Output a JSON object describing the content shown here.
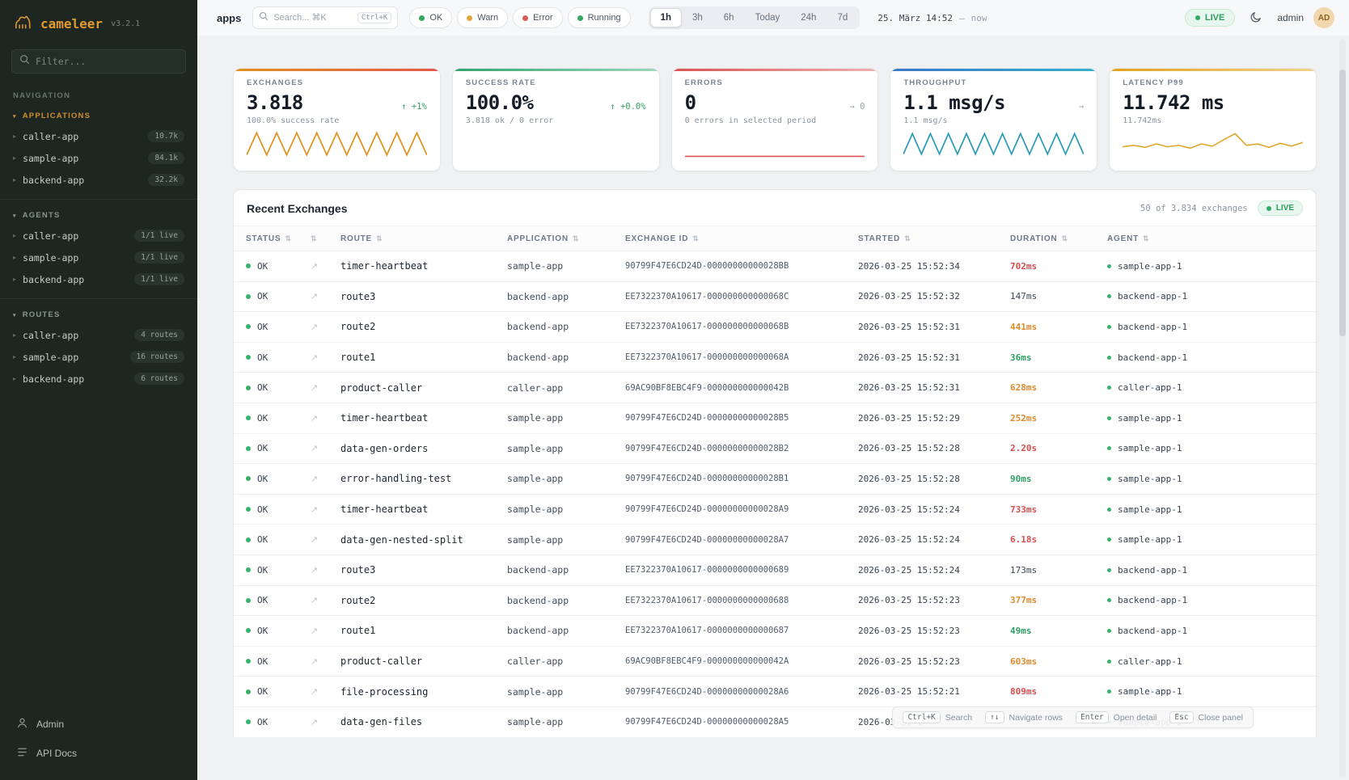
{
  "app": {
    "name": "cameleer",
    "version": "v3.2.1"
  },
  "icons": {
    "sort": "⇅",
    "chevron_right": "▸",
    "chevron_down": "▾",
    "open": "↗"
  },
  "sidebar": {
    "filter_placeholder": "Filter...",
    "nav_label": "NAVIGATION",
    "sections": [
      {
        "title": "APPLICATIONS",
        "tone": "amber",
        "items": [
          {
            "label": "caller-app",
            "badge": "10.7k"
          },
          {
            "label": "sample-app",
            "badge": "84.1k"
          },
          {
            "label": "backend-app",
            "badge": "32.2k"
          }
        ]
      },
      {
        "title": "AGENTS",
        "tone": "muted",
        "items": [
          {
            "label": "caller-app",
            "badge": "1/1 live"
          },
          {
            "label": "sample-app",
            "badge": "1/1 live"
          },
          {
            "label": "backend-app",
            "badge": "1/1 live"
          }
        ]
      },
      {
        "title": "ROUTES",
        "tone": "muted",
        "items": [
          {
            "label": "caller-app",
            "badge": "4 routes"
          },
          {
            "label": "sample-app",
            "badge": "16 routes"
          },
          {
            "label": "backend-app",
            "badge": "6 routes"
          }
        ]
      }
    ],
    "footer": [
      {
        "label": "Admin"
      },
      {
        "label": "API Docs"
      }
    ]
  },
  "header": {
    "page": "apps",
    "search_placeholder": "Search... ⌘K",
    "search_kbd": "Ctrl+K",
    "chips": [
      {
        "label": "OK",
        "color": "#34a864"
      },
      {
        "label": "Warn",
        "color": "#dfa73d"
      },
      {
        "label": "Error",
        "color": "#d95c5c"
      },
      {
        "label": "Running",
        "color": "#34a864"
      }
    ],
    "ranges": [
      {
        "label": "1h",
        "active": true
      },
      {
        "label": "3h",
        "active": false
      },
      {
        "label": "6h",
        "active": false
      },
      {
        "label": "Today",
        "active": false
      },
      {
        "label": "24h",
        "active": false
      },
      {
        "label": "7d",
        "active": false
      }
    ],
    "date": "25. März 14:52",
    "date_sep": "—",
    "date_end": "now",
    "live": "LIVE",
    "user": "admin",
    "avatar": "AD"
  },
  "cards": [
    {
      "label": "EXCHANGES",
      "value": "3.818",
      "trend_arrow": "↑",
      "trend": "+1%",
      "trend_tone": "green",
      "sub": "100.0% success rate",
      "accent": "#e2921e",
      "accent2": "#e4584b",
      "spark_color": "#e0921d",
      "spark": [
        0.88,
        0.12,
        0.88,
        0.12,
        0.88,
        0.12,
        0.88,
        0.12,
        0.88,
        0.12,
        0.88,
        0.12,
        0.88,
        0.12,
        0.88,
        0.12,
        0.88,
        0.12,
        0.88
      ]
    },
    {
      "label": "SUCCESS RATE",
      "value": "100.0%",
      "trend_arrow": "↑",
      "trend": "+0.0%",
      "trend_tone": "green",
      "sub": "3.818 ok / 0 error",
      "accent": "#2fa56c",
      "accent2": "#9ed8bb",
      "spark_color": "#2fa56c",
      "spark": []
    },
    {
      "label": "ERRORS",
      "value": "0",
      "trend_arrow": "→",
      "trend": "0",
      "trend_tone": "gray",
      "sub": "0 errors in selected period",
      "accent": "#d95252",
      "accent2": "#f0b1b1",
      "spark_color": "#d95252",
      "spark": [
        0.93,
        0.93
      ]
    },
    {
      "label": "THROUGHPUT",
      "value": "1.1 msg/s",
      "trend_arrow": "→",
      "trend": "",
      "trend_tone": "gray",
      "sub": "1.1 msg/s",
      "accent": "#3a78c9",
      "accent2": "#35b0c9",
      "spark_color": "#2b9ab8",
      "spark": [
        0.85,
        0.15,
        0.85,
        0.15,
        0.85,
        0.15,
        0.85,
        0.15,
        0.85,
        0.15,
        0.85,
        0.15,
        0.85,
        0.15,
        0.85,
        0.15,
        0.85,
        0.15,
        0.85,
        0.15,
        0.85
      ]
    },
    {
      "label": "LATENCY P99",
      "value": "11.742 ms",
      "trend_arrow": "",
      "trend": "",
      "trend_tone": "gray",
      "sub": "11.742ms",
      "accent": "#e2a31e",
      "accent2": "#efd28a",
      "spark_color": "#e0a52a",
      "spark": [
        0.6,
        0.55,
        0.62,
        0.5,
        0.6,
        0.55,
        0.65,
        0.5,
        0.58,
        0.35,
        0.15,
        0.55,
        0.5,
        0.62,
        0.48,
        0.58,
        0.45
      ]
    }
  ],
  "exchanges": {
    "title": "Recent Exchanges",
    "count": "50 of 3.834 exchanges",
    "live": "LIVE",
    "columns": [
      "STATUS",
      "",
      "ROUTE",
      "APPLICATION",
      "EXCHANGE ID",
      "STARTED",
      "DURATION",
      "AGENT"
    ],
    "rows": [
      {
        "status": "OK",
        "route": "timer-heartbeat",
        "application": "sample-app",
        "exchange_id": "90799F47E6CD24D-00000000000028BB",
        "started": "2026-03-25 15:52:34",
        "duration": "702ms",
        "tone": "red",
        "agent": "sample-app-1"
      },
      {
        "status": "OK",
        "route": "route3",
        "application": "backend-app",
        "exchange_id": "EE7322370A10617-000000000000068C",
        "started": "2026-03-25 15:52:32",
        "duration": "147ms",
        "tone": "default",
        "agent": "backend-app-1"
      },
      {
        "status": "OK",
        "route": "route2",
        "application": "backend-app",
        "exchange_id": "EE7322370A10617-000000000000068B",
        "started": "2026-03-25 15:52:31",
        "duration": "441ms",
        "tone": "orange",
        "agent": "backend-app-1"
      },
      {
        "status": "OK",
        "route": "route1",
        "application": "backend-app",
        "exchange_id": "EE7322370A10617-000000000000068A",
        "started": "2026-03-25 15:52:31",
        "duration": "36ms",
        "tone": "green",
        "agent": "backend-app-1"
      },
      {
        "status": "OK",
        "route": "product-caller",
        "application": "caller-app",
        "exchange_id": "69AC90BF8EBC4F9-000000000000042B",
        "started": "2026-03-25 15:52:31",
        "duration": "628ms",
        "tone": "orange",
        "agent": "caller-app-1"
      },
      {
        "status": "OK",
        "route": "timer-heartbeat",
        "application": "sample-app",
        "exchange_id": "90799F47E6CD24D-00000000000028B5",
        "started": "2026-03-25 15:52:29",
        "duration": "252ms",
        "tone": "orange",
        "agent": "sample-app-1"
      },
      {
        "status": "OK",
        "route": "data-gen-orders",
        "application": "sample-app",
        "exchange_id": "90799F47E6CD24D-00000000000028B2",
        "started": "2026-03-25 15:52:28",
        "duration": "2.20s",
        "tone": "red",
        "agent": "sample-app-1"
      },
      {
        "status": "OK",
        "route": "error-handling-test",
        "application": "sample-app",
        "exchange_id": "90799F47E6CD24D-00000000000028B1",
        "started": "2026-03-25 15:52:28",
        "duration": "90ms",
        "tone": "green",
        "agent": "sample-app-1"
      },
      {
        "status": "OK",
        "route": "timer-heartbeat",
        "application": "sample-app",
        "exchange_id": "90799F47E6CD24D-00000000000028A9",
        "started": "2026-03-25 15:52:24",
        "duration": "733ms",
        "tone": "red",
        "agent": "sample-app-1"
      },
      {
        "status": "OK",
        "route": "data-gen-nested-split",
        "application": "sample-app",
        "exchange_id": "90799F47E6CD24D-00000000000028A7",
        "started": "2026-03-25 15:52:24",
        "duration": "6.18s",
        "tone": "red",
        "agent": "sample-app-1"
      },
      {
        "status": "OK",
        "route": "route3",
        "application": "backend-app",
        "exchange_id": "EE7322370A10617-0000000000000689",
        "started": "2026-03-25 15:52:24",
        "duration": "173ms",
        "tone": "default",
        "agent": "backend-app-1"
      },
      {
        "status": "OK",
        "route": "route2",
        "application": "backend-app",
        "exchange_id": "EE7322370A10617-0000000000000688",
        "started": "2026-03-25 15:52:23",
        "duration": "377ms",
        "tone": "orange",
        "agent": "backend-app-1"
      },
      {
        "status": "OK",
        "route": "route1",
        "application": "backend-app",
        "exchange_id": "EE7322370A10617-0000000000000687",
        "started": "2026-03-25 15:52:23",
        "duration": "49ms",
        "tone": "green",
        "agent": "backend-app-1"
      },
      {
        "status": "OK",
        "route": "product-caller",
        "application": "caller-app",
        "exchange_id": "69AC90BF8EBC4F9-000000000000042A",
        "started": "2026-03-25 15:52:23",
        "duration": "603ms",
        "tone": "orange",
        "agent": "caller-app-1"
      },
      {
        "status": "OK",
        "route": "file-processing",
        "application": "sample-app",
        "exchange_id": "90799F47E6CD24D-00000000000028A6",
        "started": "2026-03-25 15:52:21",
        "duration": "809ms",
        "tone": "red",
        "agent": "sample-app-1"
      },
      {
        "status": "OK",
        "route": "data-gen-files",
        "application": "sample-app",
        "exchange_id": "90799F47E6CD24D-00000000000028A5",
        "started": "2026-03-25 1",
        "duration": "",
        "tone": "default",
        "agent": "sample-app-1"
      }
    ]
  },
  "hints": [
    {
      "key": "Ctrl+K",
      "label": "Search"
    },
    {
      "key": "↑↓",
      "label": "Navigate rows"
    },
    {
      "key": "Enter",
      "label": "Open detail"
    },
    {
      "key": "Esc",
      "label": "Close panel"
    }
  ]
}
